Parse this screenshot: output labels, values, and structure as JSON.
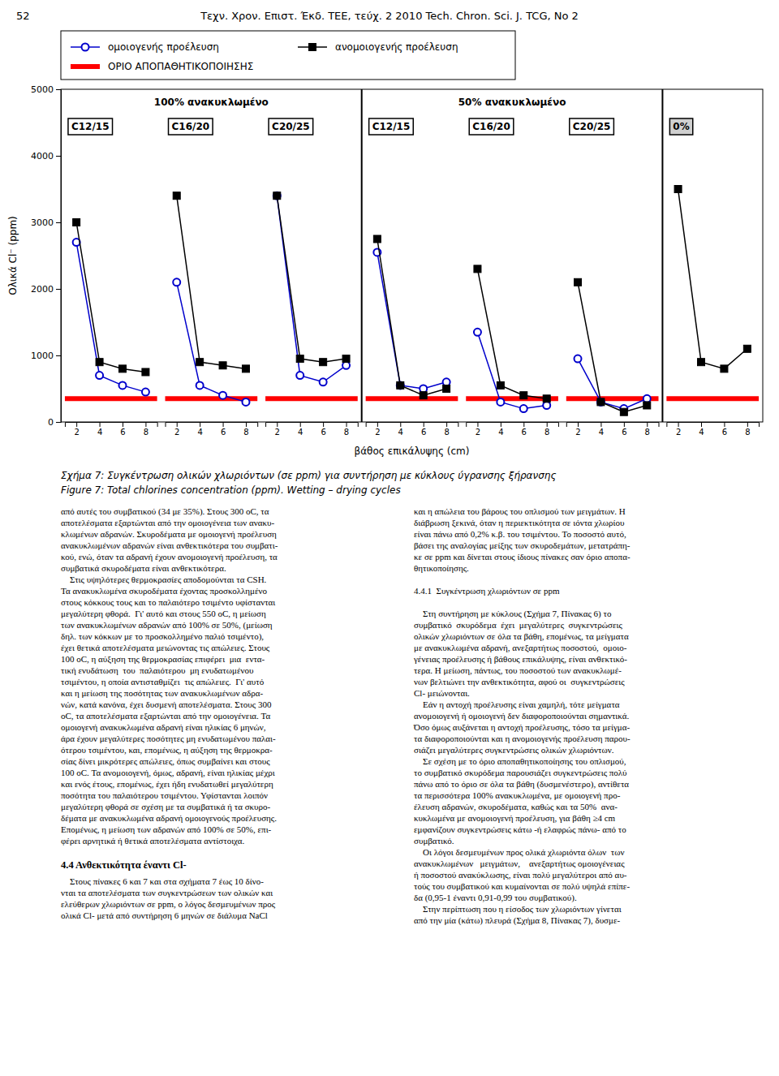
{
  "chart_data": {
    "type": "line",
    "xlabel": "βάθος επικάλυψης (cm)",
    "ylabel": "Ολικά Cl⁻ (ppm)",
    "x": [
      2,
      4,
      6,
      8
    ],
    "xlim": [
      1,
      9
    ],
    "xticks": [
      2,
      4,
      6,
      8
    ],
    "ylim": [
      0,
      5000
    ],
    "yticks": [
      0,
      1000,
      2000,
      3000,
      4000,
      5000
    ],
    "grid": false,
    "groups": [
      {
        "label": "C12/15",
        "section": "100%"
      },
      {
        "label": "C16/20",
        "section": "100%"
      },
      {
        "label": "C20/25",
        "section": "100%"
      },
      {
        "label": "C12/15",
        "section": "50%"
      },
      {
        "label": "C16/20",
        "section": "50%"
      },
      {
        "label": "C20/25",
        "section": "50%"
      },
      {
        "label": "0%",
        "section": "0%"
      }
    ],
    "section_labels": [
      "100% ανακυκλωμένο",
      "50%  ανακυκλωμένο"
    ],
    "series": [
      {
        "name": "ομοιογενής προέλευση",
        "color": "#0000CC",
        "marker": "circle-open",
        "values": [
          [
            2700,
            700,
            550,
            450
          ],
          [
            2100,
            550,
            400,
            300
          ],
          [
            3400,
            700,
            600,
            850
          ],
          [
            2550,
            550,
            500,
            600
          ],
          [
            1350,
            300,
            200,
            250
          ],
          [
            950,
            300,
            200,
            350
          ],
          [
            null,
            null,
            null,
            null
          ]
        ]
      },
      {
        "name": "ανομοιογενής προέλευση",
        "color": "#000000",
        "marker": "square",
        "values": [
          [
            3000,
            900,
            800,
            750
          ],
          [
            3400,
            900,
            850,
            800
          ],
          [
            3400,
            950,
            900,
            950
          ],
          [
            2750,
            550,
            400,
            500
          ],
          [
            2300,
            550,
            400,
            350
          ],
          [
            2100,
            300,
            150,
            250
          ],
          [
            3500,
            900,
            800,
            1100
          ]
        ]
      }
    ],
    "threshold": {
      "name": "ΟΡΙΟ ΑΠΟΠΑΘΗΤΙΚΟΠΟΙΗΣΗΣ",
      "value": 350,
      "color": "#FF0000"
    }
  },
  "page_text": {
    "page_number": "52",
    "header": "Τεχν. Χρον. Επιστ. Έκδ. ΤΕΕ, τεύχ. 2 2010 Tech. Chron. Sci. J. TCG, No 2",
    "caption_1": "Σχήμα 7:  Συγκέντρωση ολικών χλωριόντων (σε ppm) για συντήρηση με κύκλους ύγρανσης ξήρανσης",
    "caption_2": "Figure 7: Total chlorines concentration (ppm). Wetting – drying cycles",
    "body_left": "από αυτές του συμβατικού (34 με 35%). Στους 300 oC, τα\nαποτελέσματα εξαρτώνται από την ομοιογένεια των ανακυ-\nκλωμένων αδρανών. Σκυροδέματα με ομοιογενή προέλευση\nανακυκλωμένων αδρανών είναι ανθεκτικότερα του συμβατι-\nκού, ενώ, όταν τα αδρανή έχουν ανομοιογενή προέλευση, τα\nσυμβατικά σκυροδέματα είναι ανθεκτικότερα.\n    Στις υψηλότερες θερμοκρασίες αποδομούνται τα CSH.\nΤα ανακυκλωμένα σκυροδέματα έχοντας προσκολλημένο\nστους κόκκους τους και το παλαιότερο τσιμέντο υφίστανται\nμεγαλύτερη φθορά.  Γι' αυτό και στους 550 oC, η μείωση\nτων ανακυκλωμένων αδρανών από 100% σε 50%, (μείωση\nδηλ. των κόκκων με το προσκολλημένο παλιό τσιμέντο),\nέχει θετικά αποτελέσματα μειώνοντας τις απώλειες. Στους\n100 oC, η αύξηση της θερμοκρασίας επιφέρει  μια  εντα-\nτική ενυδάτωση  του  παλαιότερου  μη ενυδατωμένου\nτσιμέντου, η οποία αντισταθμίζει  τις απώλειες.  Γι' αυτό\nκαι η μείωση της ποσότητας των ανακυκλωμένων αδρα-\nνών, κατά κανόνα, έχει δυσμενή αποτελέσματα. Στους 300\noC, τα αποτελέσματα εξαρτώνται από την ομοιογένεια. Τα\nομοιογενή ανακυκλωμένα αδρανή είναι ηλικίας 6 μηνών,\nάρα έχουν μεγαλύτερες ποσότητες μη ενυδατωμένου παλαι-\nότερου τσιμέντου, και, επομένως, η αύξηση της θερμοκρα-\nσίας δίνει μικρότερες απώλειες, όπως συμβαίνει και στους\n100 oC. Τα ανομοιογενή, όμως, αδρανή, είναι ηλικίας μέχρι\nκαι ενός έτους, επομένως, έχει ήδη ενυδατωθεί μεγαλύτερη\nποσότητα του παλαιότερου τσιμέντου. Υφίστανται λοιπόν\nμεγαλύτερη φθορά σε σχέση με τα συμβατικά ή τα σκυρο-\nδέματα με ανακυκλωμένα αδρανή ομοιογενούς προέλευσης.\nΕπομένως, η μείωση των αδρανών από 100% σε 50%, επι-\nφέρει αρνητικά ή θετικά αποτελέσματα αντίστοιχα.",
    "body_right": "και η απώλεια του βάρους του οπλισμού των μειγμάτων. Η\nδιάβρωση ξεκινά, όταν η περιεκτικότητα σε ιόντα χλωρίου\nείναι πάνω από 0,2% κ.β. του τσιμέντου. Το ποσοστό αυτό,\nβάσει της αναλογίας μείξης των σκυροδεμάτων, μετατράπη-\nκε σε ppm και δίνεται στους ίδιους πίνακες σαν όριο αποπα-\nθητικοποίησης.\n\n4.4.1  Συγκέντρωση χλωριόντων σε ppm\n\n    Στη συντήρηση με κύκλους (Σχήμα 7, Πίνακας 6) το\nσυμβατικό  σκυρόδεμα  έχει  μεγαλύτερες  συγκεντρώσεις\nολικών χλωριόντων σε όλα τα βάθη, επομένως, τα μείγματα\nμε ανακυκλωμένα αδρανή, ανεξαρτήτως ποσοστού,  ομοιο-\nγένειας προέλευσης ή βάθους επικάλυψης, είναι ανθεκτικό-\nτερα. Η μείωση, πάντως, του ποσοστού των ανακυκλωμέ-\nνων βελτιώνει την ανθεκτικότητα, αφού οι  συγκεντρώσεις\nCl- μειώνονται.\n    Εάν η αντοχή προέλευσης είναι χαμηλή, τότε μείγματα\nανομοιογενή ή ομοιογενή δεν διαφοροποιούνται σημαντικά.\nΌσο όμως αυξάνεται η αντοχή προέλευσης, τόσο τα μείγμα-\nτα διαφοροποιούνται και η ανομοιογενής προέλευση παρου-\nσιάζει μεγαλύτερες συγκεντρώσεις ολικών χλωριόντων.\n    Σε σχέση με το όριο αποπαθητικοποίησης του οπλισμού,\nτο συμβατικό σκυρόδεμα παρουσιάζει συγκεντρώσεις πολύ\nπάνω από το όριο σε όλα τα βάθη (δυσμενέστερο), αντίθετα\nτα περισσότερα 100% ανακυκλωμένα, με ομοιογενή προ-\nέλευση αδρανών, σκυροδέματα, καθώς και τα 50%  ανα-\nκυκλωμένα με ανομοιογενή προέλευση, για βάθη ≥4 cm\nεμφανίζουν συγκεντρώσεις κάτω -ή ελαφρώς πάνω- από το\nσυμβατικό.\n    Οι λόγοι δεσμευμένων προς ολικά χλωριόντα όλων  των\nανακυκλωμένων   μειγμάτων,    ανεξαρτήτως ομοιογένειας\nή ποσοστού ανακύκλωσης, είναι πολύ μεγαλύτεροι από αυ-\nτούς του συμβατικού και κυμαίνονται σε πολύ υψηλά επίπε-\nδα (0,95-1 έναντι 0,91-0,99 του συμβατικού).\n    Στην περίπτωση που η είσοδος των χλωριόντων γίνεται\nαπό την μία (κάτω) πλευρά (Σχήμα 8, Πίνακας 7), δυσμε-",
    "section_heading": "4.4 Ανθεκτικότητα έναντι Cl-",
    "section_body": "    Στους πίνακες 6 και 7 και στα σχήματα 7 έως 10 δίνο-\nνται τα αποτελέσματα των συγκεντρώσεων των ολικών και\nελεύθερων χλωριόντων σε ppm, ο λόγος δεσμευμένων προς\nολικά Cl- μετά από συντήρηση 6 μηνών σε διάλυμα NaCl"
  }
}
